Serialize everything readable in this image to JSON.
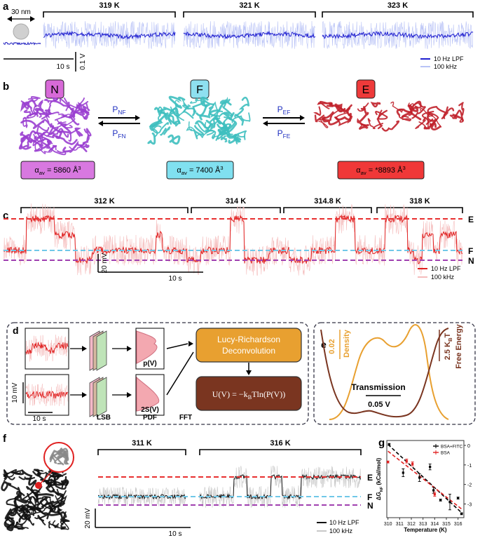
{
  "figure": {
    "a": {
      "label": "a",
      "size": "30 nm",
      "temps": [
        "319 K",
        "321 K",
        "323 K"
      ],
      "time": "10 s",
      "volt": "0.1 V",
      "legend": [
        "10 Hz LPF",
        "100 kHz"
      ]
    },
    "b": {
      "label": "b",
      "states": [
        {
          "letter": "N",
          "alpha": {
            "symbol": "α",
            "sub": "av",
            "text": " = 5860 Å",
            "sup": "3"
          }
        },
        {
          "letter": "F",
          "alpha": {
            "symbol": "α",
            "sub": "av",
            "text": " = 7400 Å",
            "sup": "3"
          }
        },
        {
          "letter": "E",
          "alpha": {
            "symbol": "α",
            "sub": "av",
            "text": " = *8893 Å",
            "sup": "3"
          }
        }
      ],
      "rates": [
        {
          "main": "P",
          "sub": "NF"
        },
        {
          "main": "P",
          "sub": "FN"
        },
        {
          "main": "P",
          "sub": "EF"
        },
        {
          "main": "P",
          "sub": "FE"
        }
      ]
    },
    "c": {
      "label": "c",
      "temps": [
        "312 K",
        "314 K",
        "314.8 K",
        "318 K"
      ],
      "levels": [
        "E",
        "F",
        "N"
      ],
      "volt": "20 mV",
      "time": "10 s",
      "legend": [
        "10 Hz LPF",
        "100 kHz"
      ]
    },
    "d": {
      "label": "d",
      "deconv": [
        "Lucy-Richardson",
        "Deconvolution"
      ],
      "equation": {
        "a": "U(V) = −k",
        "sub": "B",
        "b": "Tln(P(V))"
      },
      "pdf_labels": [
        "p(V)",
        "2S(V)"
      ],
      "steps": [
        "LSB",
        "PDF",
        "FFT"
      ],
      "volt": "10 mV",
      "time": "10 s"
    },
    "e": {
      "label": "e",
      "density_scale": "0.02",
      "density": "Density",
      "energy_scale": {
        "a": "2.5 K",
        "sub": "B",
        "b": "T"
      },
      "energy": "Free Energy",
      "transmission": "Transmission",
      "volt": "0.05 V"
    },
    "f": {
      "label": "f",
      "temps": [
        "311 K",
        "316 K"
      ],
      "levels": [
        "E",
        "F",
        "N"
      ],
      "volt": "20 mV",
      "time": "10 s",
      "legend": [
        "10 Hz LPF",
        "100 kHz"
      ]
    }
  },
  "chart_data": {
    "type": "scatter",
    "label": "g",
    "x_label": "Temperature (K)",
    "y_label": {
      "main": "ΔG",
      "sub": "NF",
      "text": " (kCal/mol)"
    },
    "xlim": [
      309.9,
      316.5
    ],
    "ylim": [
      -3.7,
      0.25
    ],
    "xticks": [
      310,
      311,
      312,
      313,
      314,
      315,
      316
    ],
    "yticks": [
      0,
      -1,
      -2,
      -3
    ],
    "series": [
      {
        "name": "BSA+FITC",
        "color": "#000000",
        "x": [
          310.1,
          311.3,
          312.7,
          313.6,
          313.9,
          314.5,
          315.3,
          316.0,
          316.3
        ],
        "values": [
          0.05,
          -1.4,
          -1.65,
          -1.1,
          -2.3,
          -2.8,
          -2.9,
          -2.7,
          -3.5
        ],
        "errors": [
          0.05,
          0.2,
          0.2,
          0.15,
          0.15,
          0.05,
          0.4,
          0.05,
          0.05
        ]
      },
      {
        "name": "BSA",
        "color": "#e02020",
        "x": [
          310.0,
          311.6,
          312.1,
          314.0
        ],
        "values": [
          -0.85,
          -0.8,
          -0.95,
          -2.5
        ],
        "errors": [
          0.05,
          0.1,
          0.1,
          0.1
        ]
      }
    ],
    "fits": [
      {
        "color": "#000000",
        "x": [
          310.0,
          316.4
        ],
        "values": [
          0.05,
          -3.5
        ]
      },
      {
        "color": "#e02020",
        "x": [
          310.0,
          316.4
        ],
        "values": [
          -0.3,
          -3.3
        ]
      }
    ],
    "legend": "top-right"
  }
}
